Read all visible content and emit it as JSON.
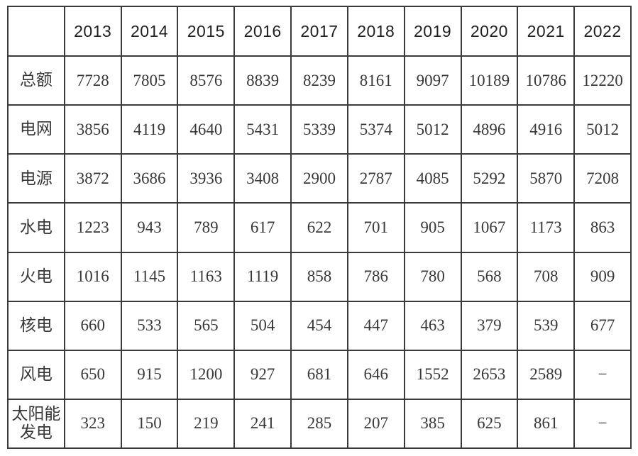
{
  "table": {
    "corner_label": "",
    "years": [
      "2013",
      "2014",
      "2015",
      "2016",
      "2017",
      "2018",
      "2019",
      "2020",
      "2021",
      "2022"
    ],
    "rows": [
      {
        "label": "总额",
        "values": [
          "7728",
          "7805",
          "8576",
          "8839",
          "8239",
          "8161",
          "9097",
          "10189",
          "10786",
          "12220"
        ]
      },
      {
        "label": "电网",
        "values": [
          "3856",
          "4119",
          "4640",
          "5431",
          "5339",
          "5374",
          "5012",
          "4896",
          "4916",
          "5012"
        ]
      },
      {
        "label": "电源",
        "values": [
          "3872",
          "3686",
          "3936",
          "3408",
          "2900",
          "2787",
          "4085",
          "5292",
          "5870",
          "7208"
        ]
      },
      {
        "label": "水电",
        "values": [
          "1223",
          "943",
          "789",
          "617",
          "622",
          "701",
          "905",
          "1067",
          "1173",
          "863"
        ]
      },
      {
        "label": "火电",
        "values": [
          "1016",
          "1145",
          "1163",
          "1119",
          "858",
          "786",
          "780",
          "568",
          "708",
          "909"
        ]
      },
      {
        "label": "核电",
        "values": [
          "660",
          "533",
          "565",
          "504",
          "454",
          "447",
          "463",
          "379",
          "539",
          "677"
        ]
      },
      {
        "label": "风电",
        "values": [
          "650",
          "915",
          "1200",
          "927",
          "681",
          "646",
          "1552",
          "2653",
          "2589",
          "−"
        ]
      },
      {
        "label": "太阳能发电",
        "values": [
          "323",
          "150",
          "219",
          "241",
          "285",
          "207",
          "385",
          "625",
          "861",
          "−"
        ]
      }
    ],
    "missing_value_symbol": "−"
  },
  "colors": {
    "border": "#3a3a3a",
    "header_text": "#1f1f1f",
    "cell_text": "#383838",
    "background": "#ffffff"
  },
  "chart_data": {
    "type": "table",
    "categories": [
      "2013",
      "2014",
      "2015",
      "2016",
      "2017",
      "2018",
      "2019",
      "2020",
      "2021",
      "2022"
    ],
    "series": [
      {
        "name": "总额",
        "values": [
          7728,
          7805,
          8576,
          8839,
          8239,
          8161,
          9097,
          10189,
          10786,
          12220
        ]
      },
      {
        "name": "电网",
        "values": [
          3856,
          4119,
          4640,
          5431,
          5339,
          5374,
          5012,
          4896,
          4916,
          5012
        ]
      },
      {
        "name": "电源",
        "values": [
          3872,
          3686,
          3936,
          3408,
          2900,
          2787,
          4085,
          5292,
          5870,
          7208
        ]
      },
      {
        "name": "水电",
        "values": [
          1223,
          943,
          789,
          617,
          622,
          701,
          905,
          1067,
          1173,
          863
        ]
      },
      {
        "name": "火电",
        "values": [
          1016,
          1145,
          1163,
          1119,
          858,
          786,
          780,
          568,
          708,
          909
        ]
      },
      {
        "name": "核电",
        "values": [
          660,
          533,
          565,
          504,
          454,
          447,
          463,
          379,
          539,
          677
        ]
      },
      {
        "name": "风电",
        "values": [
          650,
          915,
          1200,
          927,
          681,
          646,
          1552,
          2653,
          2589,
          null
        ]
      },
      {
        "name": "太阳能发电",
        "values": [
          323,
          150,
          219,
          241,
          285,
          207,
          385,
          625,
          861,
          null
        ]
      }
    ],
    "title": "",
    "xlabel": "",
    "ylabel": ""
  }
}
